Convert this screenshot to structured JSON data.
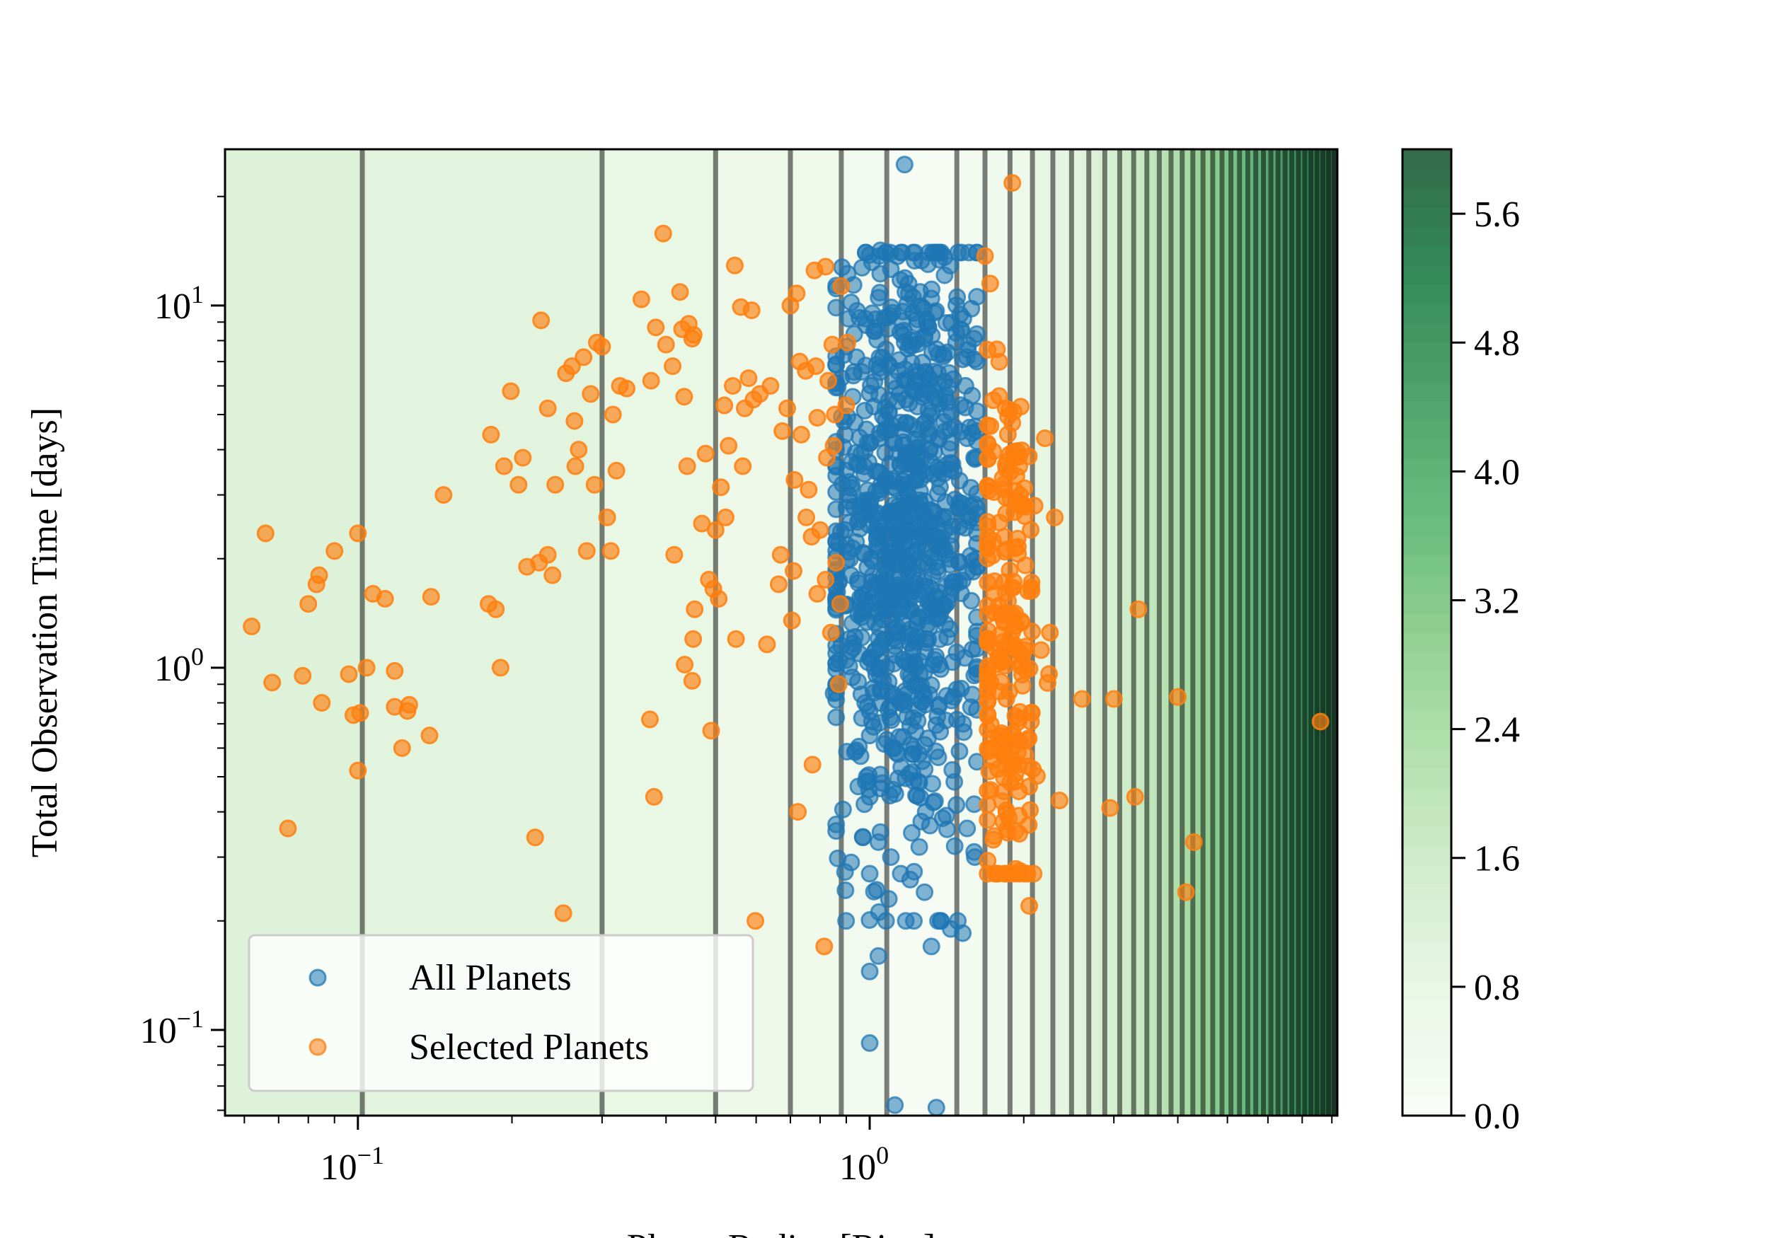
{
  "chart_data": {
    "type": "scatter",
    "xlabel": "Planet Radius [Rjup]",
    "ylabel": "Total Observation Time [days]",
    "xscale": "log",
    "yscale": "log",
    "xlim": [
      0.055,
      8.2
    ],
    "ylim": [
      0.058,
      27
    ],
    "x_ticks": [
      {
        "value": 0.1,
        "base": "10",
        "exp": "−1"
      },
      {
        "value": 1,
        "base": "10",
        "exp": "0"
      }
    ],
    "y_ticks": [
      {
        "value": 0.1,
        "base": "10",
        "exp": "−1"
      },
      {
        "value": 1,
        "base": "10",
        "exp": "0"
      },
      {
        "value": 10,
        "base": "10",
        "exp": "1"
      }
    ],
    "colorbar": {
      "ticks": [
        "0.0",
        "0.8",
        "1.6",
        "2.4",
        "3.2",
        "4.0",
        "4.8",
        "5.6"
      ],
      "range": [
        0,
        6.0
      ],
      "colormap": "Greens",
      "alpha": 0.8
    },
    "background_bands": [
      {
        "x0": 0.055,
        "x1": 0.102,
        "value": 1.15
      },
      {
        "x0": 0.102,
        "x1": 0.3,
        "value": 1.0
      },
      {
        "x0": 0.3,
        "x1": 0.5,
        "value": 0.78
      },
      {
        "x0": 0.5,
        "x1": 0.7,
        "value": 0.62
      },
      {
        "x0": 0.7,
        "x1": 0.88,
        "value": 0.48
      },
      {
        "x0": 0.88,
        "x1": 1.08,
        "value": 0.32
      },
      {
        "x0": 1.08,
        "x1": 1.48,
        "value": 0.12
      },
      {
        "x0": 1.48,
        "x1": 1.68,
        "value": 0.3
      },
      {
        "x0": 1.68,
        "x1": 1.88,
        "value": 0.45
      },
      {
        "x0": 1.88,
        "x1": 2.08,
        "value": 0.6
      }
    ],
    "boundary_lines_x": [
      0.102,
      0.3,
      0.5,
      0.7,
      0.88,
      1.08,
      1.48,
      1.68,
      1.88,
      2.08,
      2.28,
      2.48,
      2.68,
      2.88,
      3.08,
      3.28,
      3.48,
      3.68,
      3.88,
      4.08,
      4.28,
      4.48,
      4.68,
      4.88,
      5.08,
      5.28,
      5.48,
      5.68,
      5.88,
      6.08,
      6.28,
      6.48,
      6.68,
      6.88,
      7.08,
      7.28,
      7.48,
      7.68,
      7.88,
      8.08
    ],
    "right_band_range": [
      2.08,
      8.2
    ],
    "right_band_values": [
      0.8,
      6.0
    ],
    "series": [
      {
        "name": "All Planets",
        "color": "#1f77b4",
        "alpha": 0.55,
        "cluster": {
          "x_log_mean": 0.07,
          "x_log_sd": 0.075,
          "y_log_mean": 0.36,
          "y_log_sd": 0.42,
          "count": 900,
          "x_min": 0.86,
          "x_max": 1.62,
          "y_min": 0.2,
          "y_max": 14
        },
        "points": [
          [
            1.17,
            24.5
          ],
          [
            1.0,
            13.8
          ],
          [
            1.05,
            14.2
          ],
          [
            1.1,
            12.6
          ],
          [
            1.3,
            13.0
          ],
          [
            1.35,
            14.0
          ],
          [
            1.4,
            13.6
          ],
          [
            0.93,
            11.4
          ],
          [
            0.92,
            10.2
          ],
          [
            0.98,
            9.2
          ],
          [
            1.02,
            8.5
          ],
          [
            0.88,
            6.3
          ],
          [
            0.9,
            7.7
          ],
          [
            0.86,
            4.0
          ],
          [
            0.9,
            3.5
          ],
          [
            0.87,
            2.2
          ],
          [
            0.92,
            1.8
          ],
          [
            0.95,
            1.4
          ],
          [
            0.9,
            1.05
          ],
          [
            0.88,
            1.15
          ],
          [
            0.85,
            0.85
          ],
          [
            0.98,
            0.8
          ],
          [
            1.0,
            0.65
          ],
          [
            0.96,
            0.57
          ],
          [
            0.95,
            0.47
          ],
          [
            1.0,
            0.44
          ],
          [
            0.97,
            0.34
          ],
          [
            0.92,
            0.29
          ],
          [
            1.0,
            0.27
          ],
          [
            1.04,
            0.33
          ],
          [
            1.09,
            0.23
          ],
          [
            1.15,
            0.27
          ],
          [
            1.22,
            0.2
          ],
          [
            1.32,
            0.17
          ],
          [
            1.36,
            0.2
          ],
          [
            1.44,
            0.19
          ],
          [
            1.52,
            0.185
          ],
          [
            1.04,
            0.16
          ],
          [
            1.0,
            0.145
          ],
          [
            1.0,
            0.092
          ],
          [
            1.12,
            0.062
          ],
          [
            1.35,
            0.061
          ],
          [
            1.58,
            9.8
          ],
          [
            1.6,
            8.1
          ],
          [
            1.62,
            7.0
          ],
          [
            1.55,
            4.3
          ],
          [
            1.6,
            3.8
          ],
          [
            1.58,
            2.6
          ],
          [
            1.62,
            0.55
          ],
          [
            1.6,
            0.42
          ],
          [
            1.55,
            0.36
          ],
          [
            1.6,
            0.31
          ],
          [
            1.28,
            0.24
          ],
          [
            1.2,
            0.26
          ],
          [
            1.1,
            0.3
          ],
          [
            1.25,
            0.32
          ]
        ]
      },
      {
        "name": "Selected Planets",
        "color": "#ff7f0e",
        "alpha": 0.65,
        "cluster": {
          "x_log_mean": 0.27,
          "x_log_sd": 0.035,
          "y_log_mean": 0.05,
          "y_log_sd": 0.4,
          "count": 230,
          "x_min": 1.7,
          "x_max": 2.45,
          "y_min": 0.27,
          "y_max": 8
        },
        "points": [
          [
            0.062,
            1.3
          ],
          [
            0.066,
            2.35
          ],
          [
            0.068,
            0.91
          ],
          [
            0.073,
            0.36
          ],
          [
            0.078,
            0.95
          ],
          [
            0.08,
            1.5
          ],
          [
            0.083,
            1.7
          ],
          [
            0.084,
            1.8
          ],
          [
            0.085,
            0.8
          ],
          [
            0.09,
            2.1
          ],
          [
            0.096,
            0.96
          ],
          [
            0.098,
            0.74
          ],
          [
            0.1,
            2.35
          ],
          [
            0.1,
            0.52
          ],
          [
            0.101,
            0.75
          ],
          [
            0.104,
            1.0
          ],
          [
            0.107,
            1.6
          ],
          [
            0.113,
            1.55
          ],
          [
            0.118,
            0.98
          ],
          [
            0.118,
            0.78
          ],
          [
            0.122,
            0.6
          ],
          [
            0.125,
            0.76
          ],
          [
            0.126,
            0.79
          ],
          [
            0.138,
            0.65
          ],
          [
            0.139,
            1.57
          ],
          [
            0.147,
            3.0
          ],
          [
            0.182,
            4.4
          ],
          [
            0.18,
            1.5
          ],
          [
            0.186,
            1.45
          ],
          [
            0.19,
            1.0
          ],
          [
            0.193,
            3.6
          ],
          [
            0.199,
            5.8
          ],
          [
            0.206,
            3.2
          ],
          [
            0.21,
            3.8
          ],
          [
            0.214,
            1.9
          ],
          [
            0.222,
            0.34
          ],
          [
            0.228,
            9.1
          ],
          [
            0.226,
            1.95
          ],
          [
            0.235,
            5.2
          ],
          [
            0.235,
            2.05
          ],
          [
            0.24,
            1.8
          ],
          [
            0.243,
            3.2
          ],
          [
            0.252,
            0.21
          ],
          [
            0.255,
            6.5
          ],
          [
            0.262,
            6.8
          ],
          [
            0.265,
            4.8
          ],
          [
            0.266,
            3.6
          ],
          [
            0.27,
            4.0
          ],
          [
            0.276,
            7.2
          ],
          [
            0.28,
            2.1
          ],
          [
            0.285,
            5.7
          ],
          [
            0.29,
            3.2
          ],
          [
            0.293,
            7.9
          ],
          [
            0.3,
            7.7
          ],
          [
            0.307,
            2.6
          ],
          [
            0.312,
            2.1
          ],
          [
            0.315,
            5.0
          ],
          [
            0.32,
            3.5
          ],
          [
            0.325,
            6.0
          ],
          [
            0.335,
            5.9
          ],
          [
            0.358,
            10.4
          ],
          [
            0.372,
            0.72
          ],
          [
            0.374,
            6.2
          ],
          [
            0.379,
            0.44
          ],
          [
            0.382,
            8.7
          ],
          [
            0.395,
            15.8
          ],
          [
            0.4,
            7.8
          ],
          [
            0.412,
            6.8
          ],
          [
            0.415,
            2.05
          ],
          [
            0.426,
            10.9
          ],
          [
            0.43,
            8.6
          ],
          [
            0.434,
            5.6
          ],
          [
            0.435,
            1.02
          ],
          [
            0.44,
            3.6
          ],
          [
            0.443,
            8.9
          ],
          [
            0.45,
            0.92
          ],
          [
            0.45,
            8.1
          ],
          [
            0.452,
            1.2
          ],
          [
            0.453,
            8.3
          ],
          [
            0.455,
            1.45
          ],
          [
            0.47,
            2.5
          ],
          [
            0.478,
            3.9
          ],
          [
            0.485,
            1.75
          ],
          [
            0.49,
            0.67
          ],
          [
            0.495,
            1.65
          ],
          [
            0.5,
            2.4
          ],
          [
            0.507,
            1.55
          ],
          [
            0.512,
            3.15
          ],
          [
            0.52,
            5.3
          ],
          [
            0.523,
            2.6
          ],
          [
            0.53,
            4.1
          ],
          [
            0.54,
            6.0
          ],
          [
            0.545,
            12.9
          ],
          [
            0.548,
            1.2
          ],
          [
            0.56,
            9.9
          ],
          [
            0.565,
            3.6
          ],
          [
            0.57,
            5.2
          ],
          [
            0.58,
            6.3
          ],
          [
            0.588,
            9.7
          ],
          [
            0.593,
            5.5
          ],
          [
            0.598,
            0.2
          ],
          [
            0.61,
            5.7
          ],
          [
            0.63,
            1.16
          ],
          [
            0.64,
            6.0
          ],
          [
            0.664,
            1.7
          ],
          [
            0.67,
            2.05
          ],
          [
            0.675,
            4.5
          ],
          [
            0.69,
            5.2
          ],
          [
            0.7,
            10.0
          ],
          [
            0.705,
            1.35
          ],
          [
            0.71,
            1.85
          ],
          [
            0.713,
            3.3
          ],
          [
            0.72,
            10.8
          ],
          [
            0.724,
            0.4
          ],
          [
            0.73,
            7.0
          ],
          [
            0.735,
            4.4
          ],
          [
            0.75,
            6.6
          ],
          [
            0.752,
            2.6
          ],
          [
            0.76,
            3.1
          ],
          [
            0.77,
            2.3
          ],
          [
            0.773,
            0.54
          ],
          [
            0.78,
            12.5
          ],
          [
            0.785,
            6.8
          ],
          [
            0.79,
            1.6
          ],
          [
            0.79,
            4.9
          ],
          [
            0.8,
            2.4
          ],
          [
            0.815,
            0.17
          ],
          [
            0.82,
            12.8
          ],
          [
            0.82,
            1.75
          ],
          [
            0.825,
            3.8
          ],
          [
            0.83,
            6.2
          ],
          [
            0.84,
            1.25
          ],
          [
            0.845,
            7.8
          ],
          [
            0.85,
            4.1
          ],
          [
            0.855,
            5.0
          ],
          [
            0.86,
            1.95
          ],
          [
            0.87,
            0.9
          ],
          [
            0.876,
            1.5
          ],
          [
            0.88,
            11.3
          ],
          [
            0.9,
            5.3
          ],
          [
            0.905,
            7.9
          ],
          [
            1.68,
            13.7
          ],
          [
            1.72,
            11.5
          ],
          [
            1.9,
            21.8
          ],
          [
            2.05,
            0.22
          ],
          [
            2.6,
            0.82
          ],
          [
            2.95,
            0.41
          ],
          [
            3.0,
            0.82
          ],
          [
            3.3,
            0.44
          ],
          [
            3.35,
            1.45
          ],
          [
            4.0,
            0.83
          ],
          [
            4.15,
            0.24
          ],
          [
            4.3,
            0.33
          ],
          [
            7.6,
            0.71
          ],
          [
            2.2,
            4.3
          ],
          [
            2.3,
            2.6
          ],
          [
            2.25,
            1.25
          ],
          [
            2.35,
            0.43
          ],
          [
            2.1,
            2.8
          ],
          [
            2.05,
            0.47
          ]
        ]
      }
    ],
    "legend": {
      "location": "lower-left",
      "entries": [
        "All Planets",
        "Selected Planets"
      ]
    }
  }
}
